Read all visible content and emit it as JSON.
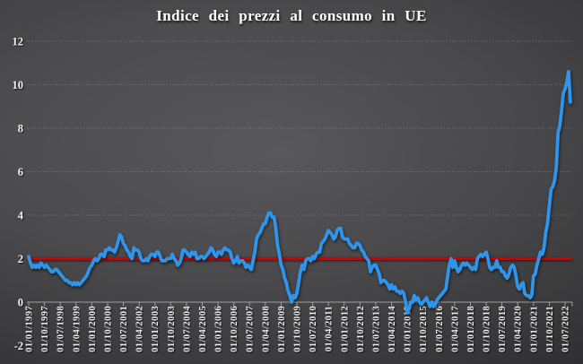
{
  "chart_data": {
    "type": "line",
    "title": "Indice dei prezzi al consumo in UE",
    "xlabel": "",
    "ylabel": "",
    "ylim": [
      -2,
      12
    ],
    "y_ticks": [
      -2,
      0,
      2,
      4,
      6,
      8,
      10,
      12
    ],
    "grid": "horizontal-dotted",
    "legend": "none",
    "x_frequency": "monthly",
    "months_per_tick": 9,
    "tick_labels": [
      "01/01/1997",
      "01/10/1997",
      "01/07/1998",
      "01/04/1999",
      "01/01/2000",
      "01/10/2000",
      "01/07/2001",
      "01/04/2002",
      "01/01/2003",
      "01/10/2003",
      "01/07/2004",
      "01/04/2005",
      "01/01/2006",
      "01/10/2006",
      "01/07/2007",
      "01/04/2008",
      "01/01/2009",
      "01/10/2009",
      "01/07/2010",
      "01/04/2011",
      "01/01/2012",
      "01/10/2012",
      "01/07/2013",
      "01/04/2014",
      "01/01/2015",
      "01/10/2015",
      "01/07/2016",
      "01/04/2017",
      "01/01/2018",
      "01/10/2018",
      "01/07/2019",
      "01/04/2020",
      "01/01/2021",
      "01/10/2021",
      "01/07/2022"
    ],
    "series": [
      {
        "name": "indice-prezzi-consumo-ue",
        "color": "#2f94ec",
        "start": "01/01/1997",
        "values": [
          2.1,
          1.8,
          1.6,
          1.7,
          1.6,
          1.7,
          1.6,
          1.8,
          1.7,
          1.6,
          1.7,
          1.6,
          1.5,
          1.4,
          1.4,
          1.5,
          1.5,
          1.4,
          1.3,
          1.2,
          1.1,
          1.0,
          1.0,
          0.9,
          0.9,
          0.8,
          0.9,
          0.8,
          0.9,
          0.8,
          0.9,
          1.0,
          1.1,
          1.2,
          1.4,
          1.6,
          1.7,
          1.9,
          2.0,
          1.9,
          2.0,
          2.2,
          2.2,
          2.1,
          2.4,
          2.4,
          2.5,
          2.4,
          2.4,
          2.3,
          2.5,
          2.8,
          3.1,
          3.0,
          2.7,
          2.6,
          2.4,
          2.3,
          2.1,
          2.0,
          2.5,
          2.4,
          2.4,
          2.3,
          2.0,
          1.9,
          1.9,
          2.0,
          1.9,
          2.1,
          2.2,
          2.2,
          2.1,
          2.3,
          2.3,
          2.1,
          1.9,
          1.9,
          1.9,
          2.0,
          2.0,
          2.0,
          2.2,
          2.0,
          1.9,
          1.7,
          1.8,
          2.0,
          2.4,
          2.4,
          2.3,
          2.2,
          2.1,
          2.3,
          2.2,
          2.3,
          2.0,
          2.0,
          2.1,
          2.1,
          2.0,
          2.1,
          2.2,
          2.3,
          2.5,
          2.4,
          2.2,
          2.1,
          2.3,
          2.3,
          2.2,
          2.4,
          2.5,
          2.4,
          2.4,
          2.3,
          2.0,
          1.8,
          1.9,
          2.1,
          1.8,
          1.9,
          1.9,
          1.8,
          1.6,
          1.7,
          1.6,
          1.5,
          1.9,
          2.3,
          2.9,
          3.1,
          3.2,
          3.4,
          3.6,
          3.6,
          3.9,
          4.1,
          4.1,
          3.9,
          3.9,
          3.4,
          2.6,
          2.2,
          1.7,
          1.5,
          1.1,
          0.9,
          0.5,
          0.3,
          0.0,
          0.3,
          0.2,
          0.4,
          0.9,
          1.4,
          1.7,
          1.5,
          1.9,
          2.0,
          2.0,
          1.9,
          2.1,
          2.0,
          2.2,
          2.3,
          2.3,
          2.7,
          2.8,
          2.9,
          3.1,
          3.3,
          3.2,
          3.1,
          2.9,
          3.0,
          3.3,
          3.4,
          3.4,
          3.0,
          2.9,
          2.9,
          2.9,
          2.7,
          2.6,
          2.5,
          2.5,
          2.7,
          2.7,
          2.6,
          2.4,
          2.3,
          2.1,
          2.0,
          1.9,
          1.4,
          1.6,
          1.7,
          1.7,
          1.5,
          1.3,
          0.9,
          1.0,
          1.0,
          0.9,
          0.8,
          0.6,
          0.8,
          0.6,
          0.7,
          0.5,
          0.5,
          0.4,
          0.5,
          0.4,
          0.0,
          -0.5,
          -0.3,
          0.0,
          0.0,
          0.3,
          0.1,
          0.2,
          0.0,
          -0.1,
          0.0,
          0.1,
          0.2,
          0.0,
          -0.2,
          0.0,
          -0.2,
          -0.1,
          0.1,
          0.2,
          0.3,
          0.4,
          0.5,
          0.6,
          1.2,
          1.7,
          2.0,
          1.6,
          1.9,
          1.6,
          1.4,
          1.5,
          1.7,
          1.8,
          1.7,
          1.8,
          1.7,
          1.6,
          1.5,
          1.6,
          1.5,
          2.0,
          2.1,
          2.2,
          2.1,
          2.2,
          2.3,
          2.0,
          1.6,
          1.5,
          1.6,
          1.6,
          1.9,
          1.6,
          1.6,
          1.4,
          1.4,
          1.2,
          1.1,
          1.3,
          1.6,
          1.7,
          1.6,
          1.2,
          0.7,
          0.6,
          0.8,
          0.9,
          0.4,
          0.3,
          0.3,
          0.2,
          0.3,
          1.2,
          1.3,
          1.7,
          2.0,
          2.3,
          2.2,
          2.5,
          3.2,
          3.6,
          4.4,
          5.2,
          5.3,
          5.6,
          6.2,
          7.8,
          8.1,
          8.8,
          9.6,
          9.8,
          10.1,
          10.6,
          9.2
        ]
      }
    ],
    "reference_line": {
      "value": 2,
      "color": "#d40000"
    },
    "axis_color": "#aaaaaa",
    "gridline_color": "#9a9a9a",
    "text_color": "#f2f2f2"
  }
}
